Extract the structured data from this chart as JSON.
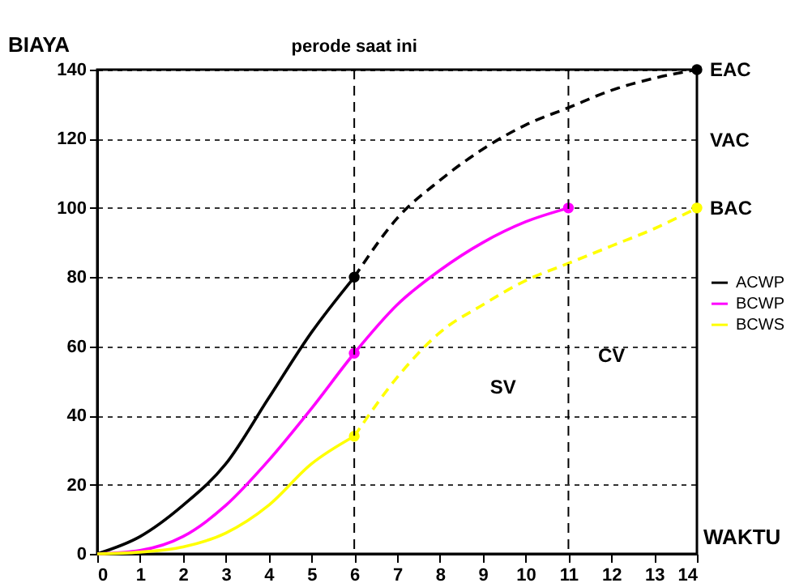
{
  "chart_data": {
    "type": "line",
    "xlabel": "WAKTU",
    "ylabel": "BIAYA",
    "xlim": [
      0,
      14
    ],
    "xticks": [
      0,
      1,
      2,
      3,
      4,
      5,
      6,
      7,
      8,
      9,
      10,
      11,
      12,
      13,
      14
    ],
    "ylim": [
      0,
      140
    ],
    "yticks": [
      0,
      20,
      40,
      60,
      80,
      100,
      120,
      140
    ],
    "grid": "y",
    "legend": "right",
    "series": [
      {
        "name": "ACWP",
        "color": "#000000",
        "line_style": "solid",
        "x": [
          0,
          1,
          2,
          3,
          4,
          5,
          6
        ],
        "values": [
          0,
          5,
          14,
          26,
          45,
          64,
          80
        ]
      },
      {
        "color": "#000000",
        "line_style": "dashed",
        "x": [
          6,
          7,
          8,
          9,
          10,
          11,
          12,
          13,
          14
        ],
        "values": [
          80,
          97,
          108,
          117,
          124,
          129,
          134,
          137.5,
          140
        ]
      },
      {
        "name": "BCWP",
        "color": "#ff00ff",
        "line_style": "solid",
        "x": [
          0,
          1,
          2,
          3,
          4,
          5,
          6,
          7,
          8,
          9,
          10,
          11
        ],
        "values": [
          0,
          1,
          5,
          14,
          27,
          42,
          58,
          72,
          82,
          90,
          96,
          100
        ]
      },
      {
        "name": "BCWS",
        "color": "#ffff00",
        "line_style": "solid",
        "x": [
          0,
          1,
          2,
          3,
          4,
          5,
          6
        ],
        "values": [
          0,
          0.5,
          2,
          6,
          14,
          26,
          34
        ]
      },
      {
        "color": "#ffff00",
        "line_style": "dashed",
        "x": [
          6,
          7,
          8,
          9,
          10,
          11,
          12,
          13,
          14
        ],
        "values": [
          34,
          51,
          64,
          72,
          79,
          84,
          89,
          94,
          100
        ]
      },
      {
        "type": "scatter",
        "marker": "circle",
        "color": "#000000",
        "x": [
          6,
          14
        ],
        "values": [
          80,
          140
        ]
      },
      {
        "type": "scatter",
        "marker": "circle",
        "color": "#ff00ff",
        "x": [
          6,
          11
        ],
        "values": [
          58,
          100
        ]
      },
      {
        "type": "scatter",
        "marker": "circle",
        "color": "#ffff00",
        "x": [
          6,
          14
        ],
        "values": [
          34,
          100
        ]
      }
    ],
    "ref_lines": [
      {
        "axis": "x",
        "value": 6,
        "label": "perode saat ini",
        "line_style": "dashed"
      },
      {
        "axis": "x",
        "value": 11,
        "line_style": "dashed"
      }
    ],
    "annotations": [
      {
        "text": "EAC",
        "x": 14,
        "y": 140
      },
      "VAC",
      {
        "text": "BAC",
        "x": 14,
        "y": 100
      },
      "SV",
      "CV"
    ]
  }
}
